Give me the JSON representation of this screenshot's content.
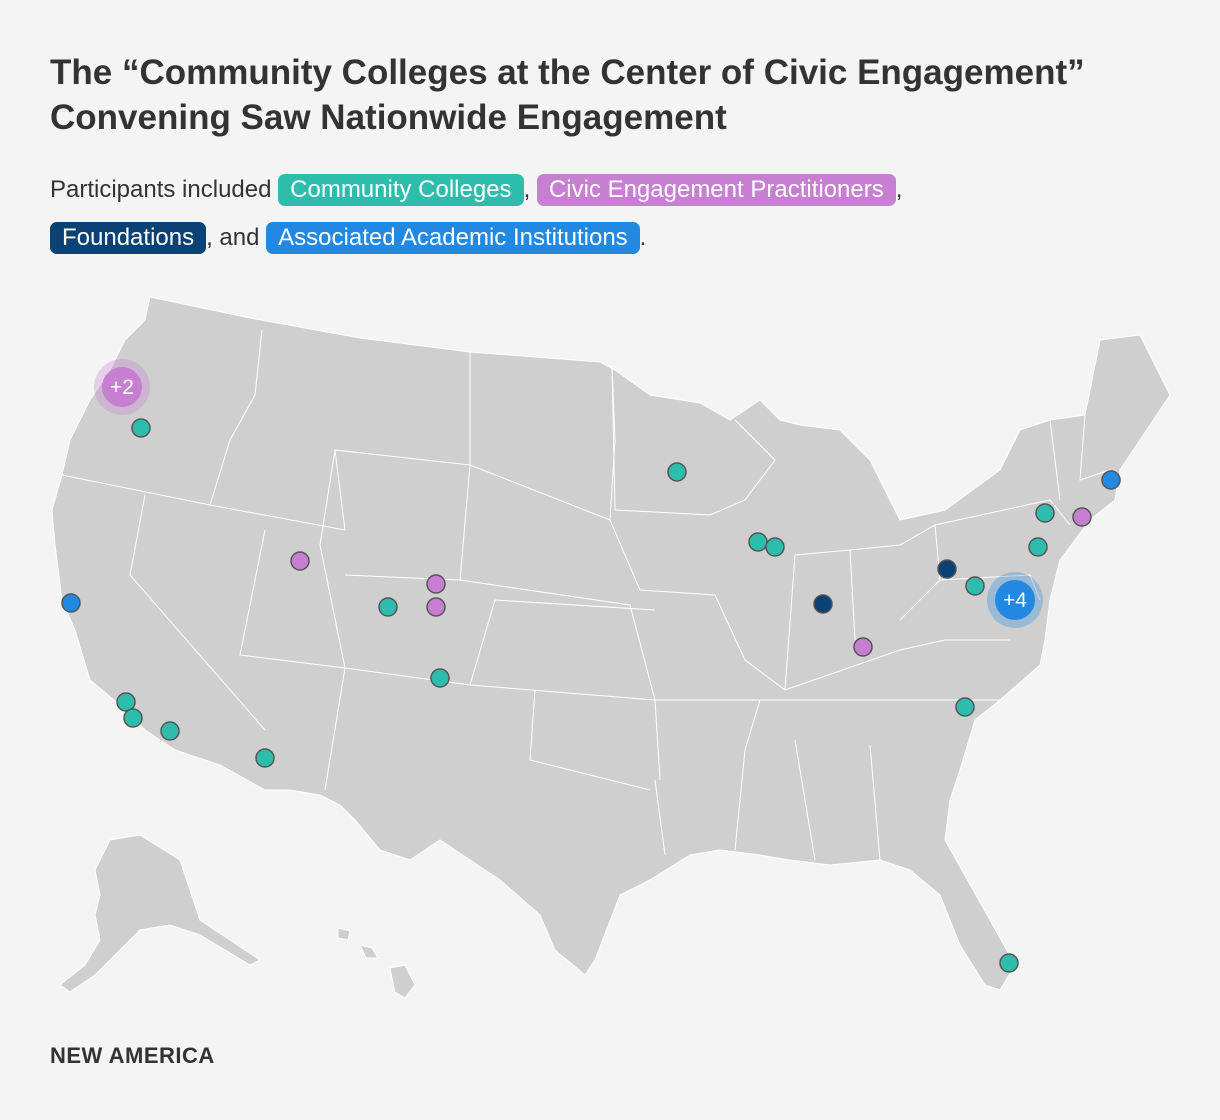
{
  "title": "The “Community Colleges at the Center of Civic Engagement” Convening Saw Nationwide Engagement",
  "subtitle": {
    "prefix": "Participants included",
    "sep1": ",",
    "sep2": ",",
    "and_text": ", and",
    "end": "."
  },
  "categories": {
    "community_colleges": {
      "label": "Community Colleges",
      "color": "#2ebdad"
    },
    "civic": {
      "label": "Civic Engagement Practitioners",
      "color": "#c67fd1"
    },
    "foundations": {
      "label": "Foundations",
      "color": "#0c4175"
    },
    "associated": {
      "label": "Associated Academic Institutions",
      "color": "#2289e2"
    }
  },
  "clusters": [
    {
      "label": "+2",
      "category": "civic",
      "location": "Seattle, WA"
    },
    {
      "label": "+4",
      "category": "associated",
      "location": "Washington, DC"
    }
  ],
  "points": [
    {
      "category": "community_colleges",
      "location": "Portland, OR"
    },
    {
      "category": "associated",
      "location": "San Francisco Bay Area, CA"
    },
    {
      "category": "community_colleges",
      "location": "Los Angeles, CA"
    },
    {
      "category": "community_colleges",
      "location": "Los Angeles, CA"
    },
    {
      "category": "community_colleges",
      "location": "Riverside, CA"
    },
    {
      "category": "community_colleges",
      "location": "Phoenix, AZ"
    },
    {
      "category": "civic",
      "location": "Salt Lake City, UT"
    },
    {
      "category": "community_colleges",
      "location": "Western Colorado"
    },
    {
      "category": "civic",
      "location": "Fort Collins, CO"
    },
    {
      "category": "civic",
      "location": "Denver, CO"
    },
    {
      "category": "community_colleges",
      "location": "Northern New Mexico"
    },
    {
      "category": "community_colleges",
      "location": "Minneapolis, MN"
    },
    {
      "category": "community_colleges",
      "location": "Chicago, IL"
    },
    {
      "category": "community_colleges",
      "location": "Chicago, IL"
    },
    {
      "category": "foundations",
      "location": "Indianapolis, IN"
    },
    {
      "category": "civic",
      "location": "Lexington, KY"
    },
    {
      "category": "foundations",
      "location": "Pittsburgh, PA"
    },
    {
      "category": "community_colleges",
      "location": "Western Maryland"
    },
    {
      "category": "community_colleges",
      "location": "North Carolina"
    },
    {
      "category": "community_colleges",
      "location": "Northeastern Pennsylvania"
    },
    {
      "category": "community_colleges",
      "location": "Eastern Pennsylvania"
    },
    {
      "category": "civic",
      "location": "New York City, NY"
    },
    {
      "category": "associated",
      "location": "Boston, MA"
    },
    {
      "category": "community_colleges",
      "location": "Miami, FL"
    }
  ],
  "footer": "NEW AMERICA"
}
